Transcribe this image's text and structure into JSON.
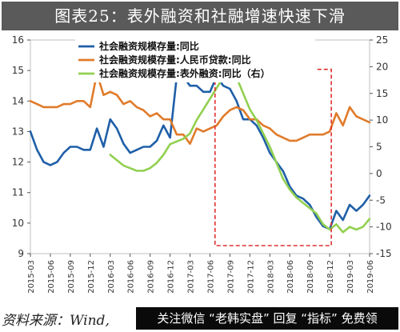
{
  "header": {
    "title": "图表25：表外融资和社融增速快速下滑"
  },
  "footer": {
    "source": "资料来源：Wind,",
    "watermark": "关注微信 “老韩实盘” 回复 “指标” 免费领"
  },
  "colors": {
    "series_tsf": "#1f5fa8",
    "series_rmb_loans": "#e07b2a",
    "series_offbalance": "#92d050",
    "highlight_box": "#e03030",
    "title_bg": "#5a5a5a"
  },
  "chart_data": {
    "type": "line",
    "x_ticks": [
      "2015-03",
      "2015-06",
      "2015-09",
      "2015-12",
      "2016-03",
      "2016-06",
      "2016-09",
      "2016-12",
      "2017-03",
      "2017-06",
      "2017-09",
      "2017-12",
      "2018-03",
      "2018-06",
      "2018-09",
      "2018-12",
      "2019-03",
      "2019-06"
    ],
    "y_left": {
      "ticks": [
        9,
        10,
        11,
        12,
        13,
        14,
        15,
        16
      ],
      "min": 9,
      "max": 16
    },
    "y_right": {
      "ticks": [
        -15,
        -10,
        -5,
        0,
        5,
        10,
        15,
        20,
        25
      ],
      "min": -15,
      "max": 25
    },
    "legend_position": "top",
    "series": [
      {
        "name": "社会融资规模存量:同比",
        "axis": "left",
        "color_key": "series_tsf",
        "points": [
          [
            "2015-03",
            13.0
          ],
          [
            "2015-04",
            12.4
          ],
          [
            "2015-05",
            12.0
          ],
          [
            "2015-06",
            11.9
          ],
          [
            "2015-07",
            12.0
          ],
          [
            "2015-08",
            12.3
          ],
          [
            "2015-09",
            12.5
          ],
          [
            "2015-10",
            12.5
          ],
          [
            "2015-11",
            12.4
          ],
          [
            "2015-12",
            12.4
          ],
          [
            "2016-01",
            13.1
          ],
          [
            "2016-02",
            12.5
          ],
          [
            "2016-03",
            13.4
          ],
          [
            "2016-04",
            13.1
          ],
          [
            "2016-05",
            12.6
          ],
          [
            "2016-06",
            12.3
          ],
          [
            "2016-07",
            12.4
          ],
          [
            "2016-08",
            12.5
          ],
          [
            "2016-09",
            12.5
          ],
          [
            "2016-10",
            12.7
          ],
          [
            "2016-11",
            13.2
          ],
          [
            "2016-12",
            12.8
          ],
          [
            "2017-01",
            14.8
          ],
          [
            "2017-02",
            14.8
          ],
          [
            "2017-03",
            14.5
          ],
          [
            "2017-04",
            14.5
          ],
          [
            "2017-05",
            14.3
          ],
          [
            "2017-06",
            14.3
          ],
          [
            "2017-07",
            14.8
          ],
          [
            "2017-08",
            14.5
          ],
          [
            "2017-09",
            14.4
          ],
          [
            "2017-10",
            14.0
          ],
          [
            "2017-11",
            13.4
          ],
          [
            "2017-12",
            13.4
          ],
          [
            "2018-01",
            13.2
          ],
          [
            "2018-02",
            12.8
          ],
          [
            "2018-03",
            12.3
          ],
          [
            "2018-04",
            12.0
          ],
          [
            "2018-05",
            11.7
          ],
          [
            "2018-06",
            11.2
          ],
          [
            "2018-07",
            10.9
          ],
          [
            "2018-08",
            10.8
          ],
          [
            "2018-09",
            10.6
          ],
          [
            "2018-10",
            10.2
          ],
          [
            "2018-11",
            9.9
          ],
          [
            "2018-12",
            9.8
          ],
          [
            "2019-01",
            10.4
          ],
          [
            "2019-02",
            10.1
          ],
          [
            "2019-03",
            10.6
          ],
          [
            "2019-04",
            10.4
          ],
          [
            "2019-05",
            10.6
          ],
          [
            "2019-06",
            10.9
          ]
        ]
      },
      {
        "name": "社会融资规模存量:人民币贷款:同比",
        "axis": "left",
        "color_key": "series_rmb_loans",
        "points": [
          [
            "2015-03",
            14.0
          ],
          [
            "2015-04",
            13.9
          ],
          [
            "2015-05",
            13.8
          ],
          [
            "2015-06",
            13.8
          ],
          [
            "2015-07",
            13.8
          ],
          [
            "2015-08",
            13.9
          ],
          [
            "2015-09",
            13.9
          ],
          [
            "2015-10",
            14.0
          ],
          [
            "2015-11",
            14.0
          ],
          [
            "2015-12",
            13.8
          ],
          [
            "2016-01",
            14.9
          ],
          [
            "2016-02",
            14.2
          ],
          [
            "2016-03",
            14.3
          ],
          [
            "2016-04",
            14.2
          ],
          [
            "2016-05",
            13.9
          ],
          [
            "2016-06",
            14.0
          ],
          [
            "2016-07",
            13.8
          ],
          [
            "2016-08",
            13.7
          ],
          [
            "2016-09",
            13.5
          ],
          [
            "2016-10",
            13.6
          ],
          [
            "2016-11",
            13.4
          ],
          [
            "2016-12",
            13.4
          ],
          [
            "2017-01",
            12.9
          ],
          [
            "2017-02",
            12.9
          ],
          [
            "2017-03",
            12.6
          ],
          [
            "2017-04",
            13.1
          ],
          [
            "2017-05",
            13.0
          ],
          [
            "2017-06",
            13.1
          ],
          [
            "2017-07",
            13.2
          ],
          [
            "2017-08",
            13.5
          ],
          [
            "2017-09",
            13.7
          ],
          [
            "2017-10",
            13.8
          ],
          [
            "2017-11",
            13.7
          ],
          [
            "2017-12",
            13.4
          ],
          [
            "2018-01",
            13.4
          ],
          [
            "2018-02",
            13.2
          ],
          [
            "2018-03",
            13.1
          ],
          [
            "2018-04",
            12.9
          ],
          [
            "2018-05",
            12.8
          ],
          [
            "2018-06",
            12.7
          ],
          [
            "2018-07",
            12.7
          ],
          [
            "2018-08",
            12.8
          ],
          [
            "2018-09",
            12.9
          ],
          [
            "2018-10",
            12.9
          ],
          [
            "2018-11",
            12.9
          ],
          [
            "2018-12",
            13.0
          ],
          [
            "2019-01",
            13.6
          ],
          [
            "2019-02",
            13.2
          ],
          [
            "2019-03",
            13.8
          ],
          [
            "2019-04",
            13.5
          ],
          [
            "2019-05",
            13.4
          ],
          [
            "2019-06",
            13.3
          ]
        ]
      },
      {
        "name": "社会融资规模存量:表外融资:同比（右）",
        "axis": "right",
        "color_key": "series_offbalance",
        "points": [
          [
            "2016-03",
            3.5
          ],
          [
            "2016-04",
            2.5
          ],
          [
            "2016-05",
            1.5
          ],
          [
            "2016-06",
            1.0
          ],
          [
            "2016-07",
            0.5
          ],
          [
            "2016-08",
            0.5
          ],
          [
            "2016-09",
            1.0
          ],
          [
            "2016-10",
            2.0
          ],
          [
            "2016-11",
            3.5
          ],
          [
            "2016-12",
            5.5
          ],
          [
            "2017-01",
            6.0
          ],
          [
            "2017-02",
            6.5
          ],
          [
            "2017-03",
            7.5
          ],
          [
            "2017-04",
            10.0
          ],
          [
            "2017-05",
            12.0
          ],
          [
            "2017-06",
            14.0
          ],
          [
            "2017-07",
            16.0
          ],
          [
            "2017-08",
            18.0
          ],
          [
            "2017-09",
            19.0
          ],
          [
            "2017-10",
            18.0
          ],
          [
            "2017-11",
            15.0
          ],
          [
            "2017-12",
            12.0
          ],
          [
            "2018-01",
            10.0
          ],
          [
            "2018-02",
            7.5
          ],
          [
            "2018-03",
            5.0
          ],
          [
            "2018-04",
            2.0
          ],
          [
            "2018-05",
            -1.0
          ],
          [
            "2018-06",
            -3.0
          ],
          [
            "2018-07",
            -4.5
          ],
          [
            "2018-08",
            -5.5
          ],
          [
            "2018-09",
            -6.5
          ],
          [
            "2018-10",
            -7.5
          ],
          [
            "2018-11",
            -9.5
          ],
          [
            "2018-12",
            -10.5
          ],
          [
            "2019-01",
            -9.5
          ],
          [
            "2019-02",
            -11.0
          ],
          [
            "2019-03",
            -10.0
          ],
          [
            "2019-04",
            -10.5
          ],
          [
            "2019-05",
            -10.0
          ],
          [
            "2019-06",
            -8.5
          ]
        ]
      }
    ],
    "highlight_range": {
      "from": "2017-07",
      "to": "2018-12"
    }
  }
}
